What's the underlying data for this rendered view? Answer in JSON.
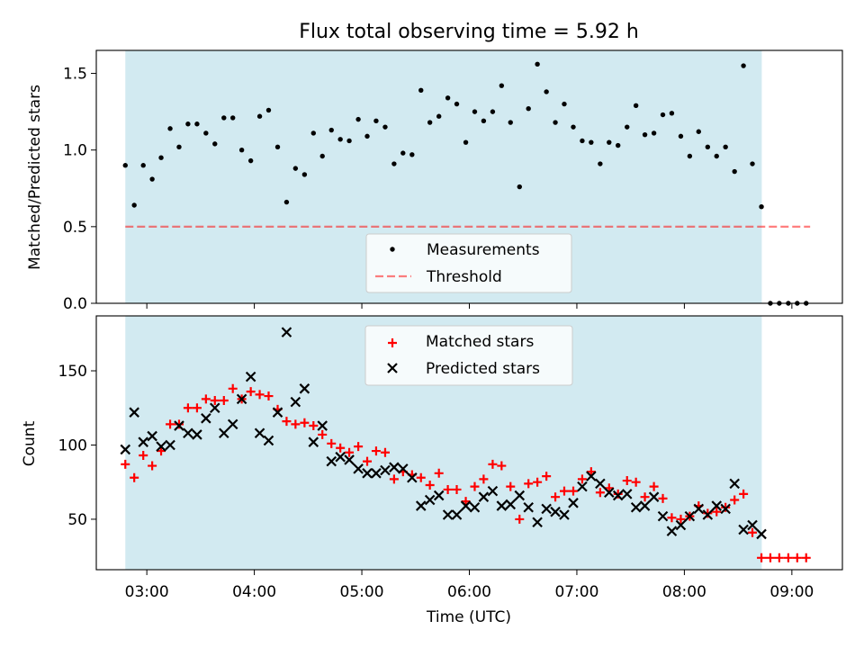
{
  "title": "Flux total observing time = 5.92 h",
  "colors": {
    "shade": "#add8e6",
    "threshold": "#ff0000",
    "matched": "#ff0000",
    "predicted": "#000000",
    "measurement": "#000000"
  },
  "chart_data": [
    {
      "type": "scatter",
      "ylabel": "Matched/Predicted stars",
      "xlim": [
        2.53,
        9.47
      ],
      "ylim": [
        0.0,
        1.65
      ],
      "yticks": [
        0.0,
        0.5,
        1.0,
        1.5
      ],
      "yticklabels": [
        "0.0",
        "0.5",
        "1.0",
        "1.5"
      ],
      "shaded_x_range": [
        2.8,
        8.72
      ],
      "threshold": {
        "y": 0.5,
        "x_range": [
          2.8,
          9.17
        ],
        "label": "Threshold"
      },
      "series": [
        {
          "name": "Measurements",
          "marker": "dot",
          "x": [
            2.8,
            2.883,
            2.967,
            3.05,
            3.133,
            3.217,
            3.3,
            3.383,
            3.467,
            3.55,
            3.633,
            3.717,
            3.8,
            3.883,
            3.967,
            4.05,
            4.133,
            4.217,
            4.3,
            4.383,
            4.467,
            4.55,
            4.633,
            4.717,
            4.8,
            4.883,
            4.967,
            5.05,
            5.133,
            5.217,
            5.3,
            5.383,
            5.467,
            5.55,
            5.633,
            5.717,
            5.8,
            5.883,
            5.967,
            6.05,
            6.133,
            6.217,
            6.3,
            6.383,
            6.467,
            6.55,
            6.633,
            6.717,
            6.8,
            6.883,
            6.967,
            7.05,
            7.133,
            7.217,
            7.3,
            7.383,
            7.467,
            7.55,
            7.633,
            7.717,
            7.8,
            7.883,
            7.967,
            8.05,
            8.133,
            8.217,
            8.3,
            8.383,
            8.467,
            8.55,
            8.633,
            8.717,
            8.8,
            8.883,
            8.967,
            9.05,
            9.133
          ],
          "y": [
            0.9,
            0.64,
            0.9,
            0.81,
            0.95,
            1.14,
            1.02,
            1.17,
            1.17,
            1.11,
            1.04,
            1.21,
            1.21,
            1.0,
            0.93,
            1.22,
            1.26,
            1.02,
            0.66,
            0.88,
            0.84,
            1.11,
            0.96,
            1.13,
            1.07,
            1.06,
            1.2,
            1.09,
            1.19,
            1.15,
            0.91,
            0.98,
            0.97,
            1.39,
            1.18,
            1.22,
            1.34,
            1.3,
            1.05,
            1.25,
            1.19,
            1.25,
            1.42,
            1.18,
            0.76,
            1.27,
            1.56,
            1.38,
            1.18,
            1.3,
            1.15,
            1.06,
            1.05,
            0.91,
            1.05,
            1.03,
            1.15,
            1.29,
            1.1,
            1.11,
            1.23,
            1.24,
            1.09,
            0.96,
            1.12,
            1.02,
            0.96,
            1.02,
            0.86,
            1.55,
            0.91,
            0.63,
            0.0,
            0.0,
            0.0,
            0.0,
            0.0
          ]
        }
      ],
      "legend": [
        "Measurements",
        "Threshold"
      ]
    },
    {
      "type": "scatter",
      "xlabel": "Time (UTC)",
      "ylabel": "Count",
      "xlim": [
        2.53,
        9.47
      ],
      "ylim": [
        16.0,
        187.0
      ],
      "xticks": [
        3,
        4,
        5,
        6,
        7,
        8,
        9
      ],
      "xticklabels": [
        "03:00",
        "04:00",
        "05:00",
        "06:00",
        "07:00",
        "08:00",
        "09:00"
      ],
      "yticks": [
        50,
        100,
        150
      ],
      "yticklabels": [
        "50",
        "100",
        "150"
      ],
      "shaded_x_range": [
        2.8,
        8.72
      ],
      "series": [
        {
          "name": "Matched stars",
          "marker": "plus",
          "x": [
            2.8,
            2.883,
            2.967,
            3.05,
            3.133,
            3.217,
            3.3,
            3.383,
            3.467,
            3.55,
            3.633,
            3.717,
            3.8,
            3.883,
            3.967,
            4.05,
            4.133,
            4.217,
            4.3,
            4.383,
            4.467,
            4.55,
            4.633,
            4.717,
            4.8,
            4.883,
            4.967,
            5.05,
            5.133,
            5.217,
            5.3,
            5.383,
            5.467,
            5.55,
            5.633,
            5.717,
            5.8,
            5.883,
            5.967,
            6.05,
            6.133,
            6.217,
            6.3,
            6.383,
            6.467,
            6.55,
            6.633,
            6.717,
            6.8,
            6.883,
            6.967,
            7.05,
            7.133,
            7.217,
            7.3,
            7.383,
            7.467,
            7.55,
            7.633,
            7.717,
            7.8,
            7.883,
            7.967,
            8.05,
            8.133,
            8.217,
            8.3,
            8.383,
            8.467,
            8.55,
            8.633,
            8.717,
            8.8,
            8.883,
            8.967,
            9.05,
            9.133
          ],
          "y": [
            87,
            78,
            93,
            86,
            96,
            114,
            114,
            125,
            125,
            131,
            130,
            130,
            138,
            131,
            136,
            134,
            133,
            124,
            116,
            114,
            115,
            113,
            107,
            101,
            98,
            95,
            99,
            89,
            96,
            95,
            77,
            82,
            80,
            78,
            73,
            81,
            70,
            70,
            62,
            72,
            77,
            87,
            86,
            72,
            50,
            74,
            75,
            79,
            65,
            69,
            69,
            77,
            82,
            68,
            71,
            67,
            76,
            75,
            65,
            72,
            64,
            51,
            50,
            52,
            59,
            54,
            55,
            58,
            63,
            67,
            41,
            24,
            24,
            24,
            24,
            24,
            24
          ]
        },
        {
          "name": "Predicted stars",
          "marker": "x",
          "x": [
            2.8,
            2.883,
            2.967,
            3.05,
            3.133,
            3.217,
            3.3,
            3.383,
            3.467,
            3.55,
            3.633,
            3.717,
            3.8,
            3.883,
            3.967,
            4.05,
            4.133,
            4.217,
            4.3,
            4.383,
            4.467,
            4.55,
            4.633,
            4.717,
            4.8,
            4.883,
            4.967,
            5.05,
            5.133,
            5.217,
            5.3,
            5.383,
            5.467,
            5.55,
            5.633,
            5.717,
            5.8,
            5.883,
            5.967,
            6.05,
            6.133,
            6.217,
            6.3,
            6.383,
            6.467,
            6.55,
            6.633,
            6.717,
            6.8,
            6.883,
            6.967,
            7.05,
            7.133,
            7.217,
            7.3,
            7.383,
            7.467,
            7.55,
            7.633,
            7.717,
            7.8,
            7.883,
            7.967,
            8.05,
            8.133,
            8.217,
            8.3,
            8.383,
            8.467,
            8.55,
            8.633,
            8.717
          ],
          "y": [
            97,
            122,
            102,
            106,
            99,
            100,
            113,
            108,
            107,
            118,
            125,
            108,
            114,
            131,
            146,
            108,
            103,
            122,
            176,
            129,
            138,
            102,
            113,
            89,
            92,
            90,
            84,
            81,
            81,
            83,
            85,
            84,
            78,
            59,
            63,
            66,
            53,
            53,
            59,
            58,
            65,
            69,
            59,
            60,
            66,
            58,
            48,
            57,
            55,
            53,
            61,
            72,
            79,
            74,
            68,
            66,
            67,
            58,
            59,
            65,
            52,
            42,
            46,
            52,
            57,
            53,
            59,
            57,
            74,
            43,
            46,
            40
          ]
        }
      ],
      "legend": [
        "Matched stars",
        "Predicted stars"
      ]
    }
  ]
}
